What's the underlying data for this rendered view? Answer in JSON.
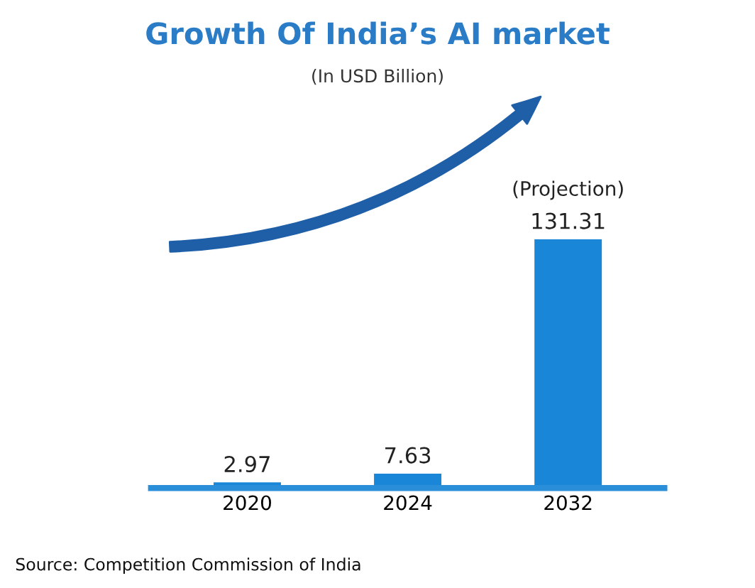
{
  "chart_data": {
    "type": "bar",
    "title": "Growth Of India’s AI market",
    "subtitle": "(In USD Billion)",
    "categories": [
      "2020",
      "2024",
      "2032"
    ],
    "values": [
      2.97,
      7.63,
      131.31
    ],
    "color": "#1a86d8",
    "data_labels": true,
    "tick_labels": "x",
    "annotations": [
      {
        "text": "(Projection)",
        "x": "2032",
        "y": 131.31
      },
      "Source: Competition Commission of India"
    ]
  }
}
